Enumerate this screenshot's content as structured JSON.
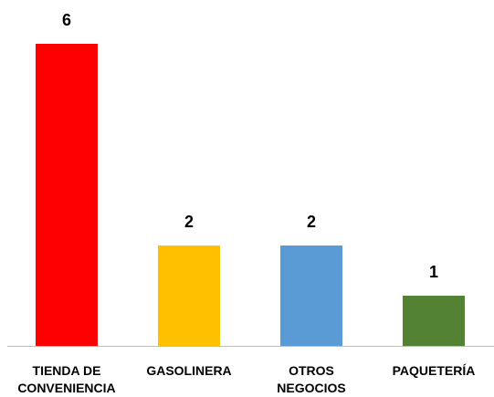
{
  "chart_data": {
    "type": "bar",
    "categories": [
      "TIENDA DE CONVENIENCIA",
      "GASOLINERA",
      "OTROS NEGOCIOS",
      "PAQUETERÍA"
    ],
    "values": [
      6,
      2,
      2,
      1
    ],
    "colors": [
      "#ff0000",
      "#ffc000",
      "#5b9bd5",
      "#548235"
    ]
  }
}
